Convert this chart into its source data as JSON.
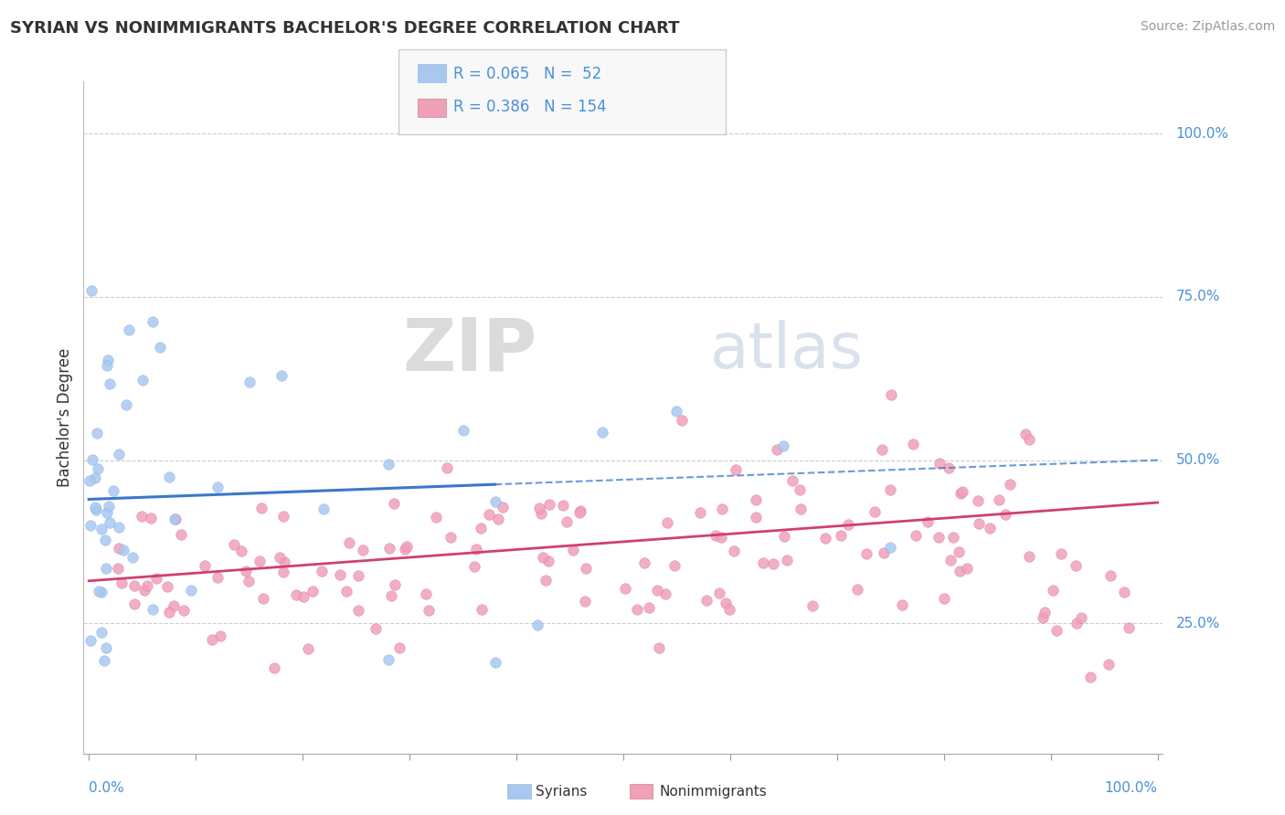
{
  "title": "SYRIAN VS NONIMMIGRANTS BACHELOR'S DEGREE CORRELATION CHART",
  "source": "Source: ZipAtlas.com",
  "ylabel": "Bachelor's Degree",
  "watermark_zip": "ZIP",
  "watermark_atlas": "atlas",
  "syrian_color": "#a8c8f0",
  "syrian_edge_color": "#7aaede",
  "nonimmigrant_color": "#f0a0b8",
  "nonimmigrant_edge_color": "#d87090",
  "syrian_line_color": "#3a78c9",
  "nonimmigrant_line_color": "#d04070",
  "ytick_color": "#4a90d9",
  "background_color": "#ffffff",
  "grid_color": "#cccccc",
  "legend_r1": "R = 0.065",
  "legend_n1": "N =  52",
  "legend_r2": "R = 0.386",
  "legend_n2": "N = 154"
}
